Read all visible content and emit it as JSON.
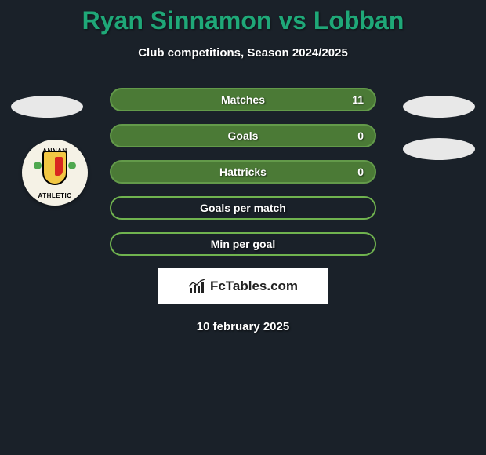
{
  "title": "Ryan Sinnamon vs Lobban",
  "subtitle": "Club competitions, Season 2024/2025",
  "date": "10 february 2025",
  "colors": {
    "background": "#1a2129",
    "title": "#1fa878",
    "bar_value_border": "#639a4a",
    "bar_value_fill": "#4b7a36",
    "bar_empty_border": "#70b34f",
    "bar_empty_fill": "transparent",
    "ellipse": "#e8e8e8"
  },
  "badge": {
    "top_text": "ANNAN",
    "bottom_text": "ATHLETIC"
  },
  "brand": {
    "label": "FcTables.com"
  },
  "bars": [
    {
      "label": "Matches",
      "value": "11",
      "has_value": true
    },
    {
      "label": "Goals",
      "value": "0",
      "has_value": true
    },
    {
      "label": "Hattricks",
      "value": "0",
      "has_value": true
    },
    {
      "label": "Goals per match",
      "value": "",
      "has_value": false
    },
    {
      "label": "Min per goal",
      "value": "",
      "has_value": false
    }
  ]
}
